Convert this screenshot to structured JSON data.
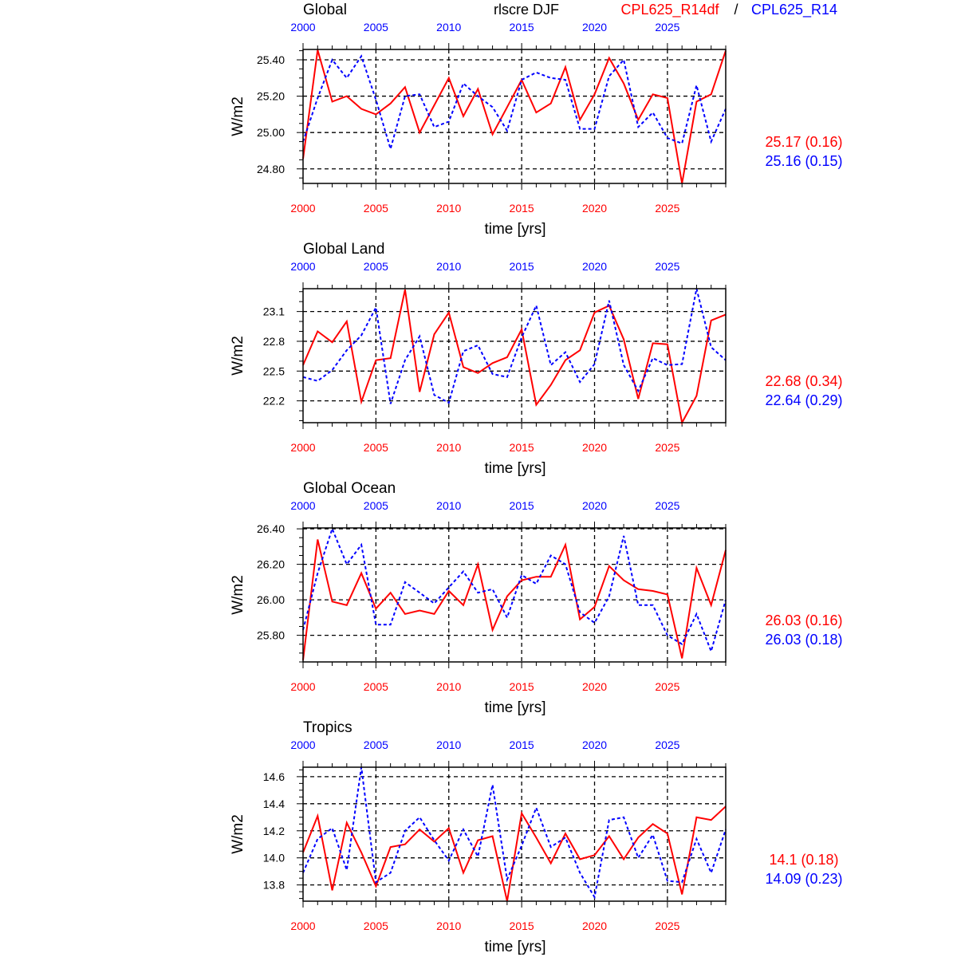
{
  "header": {
    "variable": "rlscre DJF",
    "case1": "CPL625_R14df",
    "separator": "/",
    "case2": "CPL625_R14"
  },
  "colors": {
    "case1": "#ff0000",
    "case2": "#0000ff",
    "axis": "#000000"
  },
  "chart_data": [
    {
      "type": "line",
      "title": "Global",
      "xlabel": "time [yrs]",
      "ylabel": "W/m2",
      "xlim": [
        2000,
        2029
      ],
      "xticks": [
        "2000",
        "2005",
        "2010",
        "2015",
        "2020",
        "2025"
      ],
      "ylim": [
        24.72,
        25.457
      ],
      "yticks": [
        24.8,
        25.0,
        25.2,
        25.4
      ],
      "ytick_labels": [
        "24.80",
        "25.00",
        "25.20",
        "25.40"
      ],
      "yminor_step": 0.05,
      "grid": true,
      "stats": [
        "25.17 (0.16)",
        "25.16 (0.15)"
      ],
      "series": [
        {
          "name": "CPL625_R14df",
          "style": "solid",
          "values": [
            24.855,
            25.454,
            25.17,
            25.2,
            25.13,
            25.1,
            25.16,
            25.25,
            25.0,
            25.15,
            25.3,
            25.09,
            25.24,
            24.99,
            25.14,
            25.29,
            25.11,
            25.16,
            25.36,
            25.07,
            25.21,
            25.41,
            25.27,
            25.07,
            25.21,
            25.19,
            24.72,
            25.17,
            25.21,
            25.45
          ]
        },
        {
          "name": "CPL625_R14",
          "style": "dotted",
          "values": [
            24.95,
            25.19,
            25.4,
            25.3,
            25.42,
            25.18,
            24.91,
            25.2,
            25.21,
            25.03,
            25.06,
            25.27,
            25.2,
            25.14,
            25.01,
            25.29,
            25.33,
            25.3,
            25.29,
            25.02,
            25.02,
            25.31,
            25.4,
            25.03,
            25.11,
            24.97,
            24.94,
            25.26,
            24.95,
            25.13
          ]
        }
      ]
    },
    {
      "type": "line",
      "title": "Global Land",
      "xlabel": "time [yrs]",
      "ylabel": "W/m2",
      "xlim": [
        2000,
        2029
      ],
      "xticks": [
        "2000",
        "2005",
        "2010",
        "2015",
        "2020",
        "2025"
      ],
      "ylim": [
        21.98,
        23.33
      ],
      "yticks": [
        22.2,
        22.5,
        22.8,
        23.1
      ],
      "ytick_labels": [
        "22.2",
        "22.5",
        "22.8",
        "23.1"
      ],
      "yminor_step": 0.1,
      "grid": true,
      "stats": [
        "22.68 (0.34)",
        "22.64 (0.29)"
      ],
      "series": [
        {
          "name": "CPL625_R14df",
          "style": "solid",
          "values": [
            22.56,
            22.9,
            22.79,
            23.0,
            22.19,
            22.61,
            22.63,
            23.32,
            22.29,
            22.87,
            23.09,
            22.54,
            22.48,
            22.58,
            22.64,
            22.92,
            22.16,
            22.36,
            22.61,
            22.71,
            23.09,
            23.16,
            22.82,
            22.22,
            22.78,
            22.77,
            21.98,
            22.25,
            23.01,
            23.07
          ]
        },
        {
          "name": "CPL625_R14",
          "style": "dotted",
          "values": [
            22.44,
            22.4,
            22.51,
            22.71,
            22.86,
            23.14,
            22.17,
            22.61,
            22.85,
            22.26,
            22.18,
            22.7,
            22.76,
            22.47,
            22.44,
            22.84,
            23.16,
            22.56,
            22.69,
            22.39,
            22.57,
            23.21,
            22.56,
            22.3,
            22.63,
            22.56,
            22.57,
            23.33,
            22.74,
            22.61
          ]
        }
      ]
    },
    {
      "type": "line",
      "title": "Global Ocean",
      "xlabel": "time [yrs]",
      "ylabel": "W/m2",
      "xlim": [
        2000,
        2029
      ],
      "xticks": [
        "2000",
        "2005",
        "2010",
        "2015",
        "2020",
        "2025"
      ],
      "ylim": [
        25.65,
        26.405
      ],
      "yticks": [
        25.8,
        26.0,
        26.2,
        26.4
      ],
      "ytick_labels": [
        "25.80",
        "26.00",
        "26.20",
        "26.40"
      ],
      "yminor_step": 0.05,
      "grid": true,
      "stats": [
        "26.03 (0.16)",
        "26.03 (0.18)"
      ],
      "series": [
        {
          "name": "CPL625_R14df",
          "style": "solid",
          "values": [
            25.66,
            26.34,
            25.99,
            25.97,
            26.15,
            25.95,
            26.04,
            25.92,
            25.94,
            25.92,
            26.05,
            25.97,
            26.2,
            25.83,
            26.02,
            26.11,
            26.13,
            26.13,
            26.31,
            25.89,
            25.96,
            26.19,
            26.11,
            26.06,
            26.05,
            26.03,
            25.67,
            26.18,
            25.97,
            26.28
          ]
        },
        {
          "name": "CPL625_R14",
          "style": "dotted",
          "values": [
            25.83,
            26.15,
            26.4,
            26.2,
            26.31,
            25.86,
            25.86,
            26.1,
            26.04,
            25.98,
            26.07,
            26.16,
            26.04,
            26.06,
            25.9,
            26.14,
            26.09,
            26.25,
            26.2,
            25.93,
            25.87,
            26.02,
            26.36,
            25.97,
            25.97,
            25.8,
            25.75,
            25.92,
            25.71,
            26.0
          ]
        }
      ]
    },
    {
      "type": "line",
      "title": "Tropics",
      "xlabel": "time [yrs]",
      "ylabel": "W/m2",
      "xlim": [
        2000,
        2029
      ],
      "xticks": [
        "2000",
        "2005",
        "2010",
        "2015",
        "2020",
        "2025"
      ],
      "ylim": [
        13.68,
        14.67
      ],
      "yticks": [
        13.8,
        14.0,
        14.2,
        14.4,
        14.6
      ],
      "ytick_labels": [
        "13.8",
        "14.0",
        "14.2",
        "14.4",
        "14.6"
      ],
      "yminor_step": 0.05,
      "grid": true,
      "stats": [
        "14.1 (0.18)",
        "14.09 (0.23)"
      ],
      "series": [
        {
          "name": "CPL625_R14df",
          "style": "solid",
          "values": [
            14.04,
            14.31,
            13.76,
            14.26,
            14.04,
            13.79,
            14.08,
            14.1,
            14.21,
            14.12,
            14.22,
            13.89,
            14.13,
            14.16,
            13.68,
            14.33,
            14.15,
            13.96,
            14.18,
            13.99,
            14.02,
            14.16,
            13.99,
            14.15,
            14.25,
            14.18,
            13.73,
            14.3,
            14.28,
            14.38
          ]
        },
        {
          "name": "CPL625_R14",
          "style": "dotted",
          "values": [
            13.89,
            14.14,
            14.22,
            13.91,
            14.67,
            13.82,
            13.89,
            14.2,
            14.3,
            14.13,
            13.98,
            14.21,
            14.01,
            14.54,
            13.84,
            14.09,
            14.37,
            14.08,
            14.15,
            13.89,
            13.71,
            14.28,
            14.3,
            14.0,
            14.17,
            13.83,
            13.82,
            14.14,
            13.89,
            14.21
          ]
        }
      ]
    }
  ]
}
